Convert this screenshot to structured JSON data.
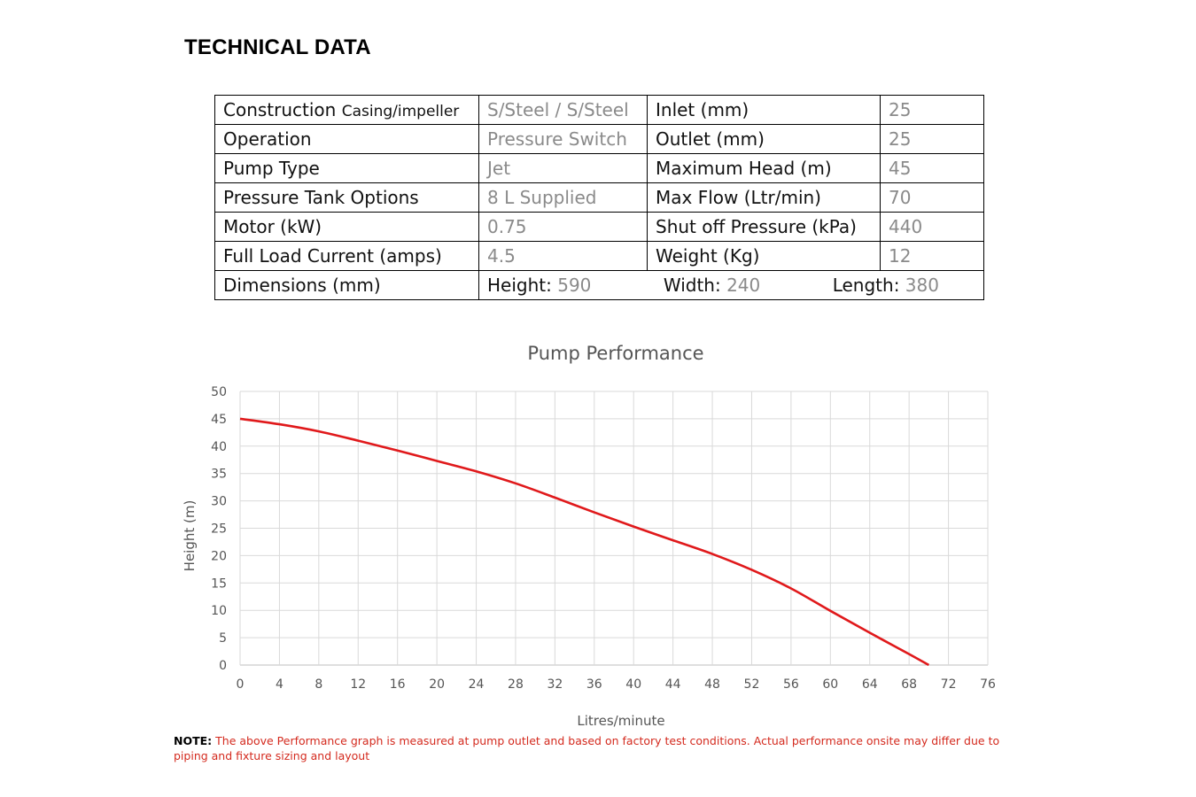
{
  "heading": "TECHNICAL DATA",
  "specs": {
    "rows": [
      {
        "label": "Construction",
        "label_small": "Casing/impeller",
        "value": "S/Steel / S/Steel",
        "label2": "Inlet (mm)",
        "value2": "25"
      },
      {
        "label": "Operation",
        "value": "Pressure Switch",
        "label2": "Outlet (mm)",
        "value2": "25"
      },
      {
        "label": "Pump Type",
        "value": "Jet",
        "label2": "Maximum Head (m)",
        "value2": "45"
      },
      {
        "label": "Pressure Tank Options",
        "value": "8 L Supplied",
        "label2": "Max Flow (Ltr/min)",
        "value2": "70"
      },
      {
        "label": "Motor  (kW)",
        "value": "0.75",
        "label2": "Shut off Pressure (kPa)",
        "value2": "440"
      },
      {
        "label": "Full Load Current (amps)",
        "value": "4.5",
        "label2": "Weight (Kg)",
        "value2": "12"
      }
    ],
    "dimensions": {
      "label": "Dimensions (mm)",
      "height_label": "Height:",
      "height": "590",
      "width_label": "Width:",
      "width": "240",
      "length_label": "Length:",
      "length": "380"
    }
  },
  "chart_data": {
    "type": "line",
    "title": "Pump Performance",
    "xlabel": "Litres/minute",
    "ylabel": "Height (m)",
    "xlim": [
      0,
      76
    ],
    "ylim": [
      0,
      50
    ],
    "xticks": [
      0,
      4,
      8,
      12,
      16,
      20,
      24,
      28,
      32,
      36,
      40,
      44,
      48,
      52,
      56,
      60,
      64,
      68,
      72,
      76
    ],
    "yticks": [
      0,
      5,
      10,
      15,
      20,
      25,
      30,
      35,
      40,
      45,
      50
    ],
    "grid": true,
    "series": [
      {
        "color": "#e0191b",
        "points": [
          [
            0,
            45
          ],
          [
            4,
            44
          ],
          [
            8,
            42.7
          ],
          [
            12,
            41
          ],
          [
            16,
            39.2
          ],
          [
            20,
            37.3
          ],
          [
            24,
            35.4
          ],
          [
            28,
            33.2
          ],
          [
            32,
            30.6
          ],
          [
            36,
            27.9
          ],
          [
            40,
            25.3
          ],
          [
            44,
            22.8
          ],
          [
            48,
            20.3
          ],
          [
            52,
            17.4
          ],
          [
            56,
            14
          ],
          [
            60,
            9.9
          ],
          [
            64,
            5.9
          ],
          [
            68,
            2
          ],
          [
            70,
            0
          ]
        ]
      }
    ]
  },
  "note": {
    "prefix": "NOTE:",
    "text": " The above Performance graph is measured at pump outlet and based on factory test conditions. Actual performance onsite may differ due to piping and fixture sizing and layout"
  }
}
